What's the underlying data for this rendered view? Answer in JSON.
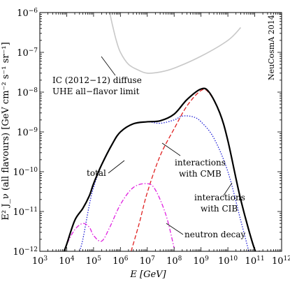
{
  "chart_data": {
    "type": "line",
    "xlabel": "E [GeV]",
    "ylabel": "E² J_ν (all flavours) [GeV cm⁻² s⁻¹ sr⁻¹]",
    "xscale": "log",
    "yscale": "log",
    "xlim": [
      1000,
      1000000000000
    ],
    "ylim": [
      1e-12,
      1e-06
    ],
    "grid": false,
    "x_ticks": [
      {
        "v": 1000.0,
        "base": "10",
        "exp": "3"
      },
      {
        "v": 10000.0,
        "base": "10",
        "exp": "4"
      },
      {
        "v": 100000.0,
        "base": "10",
        "exp": "5"
      },
      {
        "v": 1000000.0,
        "base": "10",
        "exp": "6"
      },
      {
        "v": 10000000.0,
        "base": "10",
        "exp": "7"
      },
      {
        "v": 100000000.0,
        "base": "10",
        "exp": "8"
      },
      {
        "v": 1000000000.0,
        "base": "10",
        "exp": "9"
      },
      {
        "v": 10000000000.0,
        "base": "10",
        "exp": "10"
      },
      {
        "v": 100000000000.0,
        "base": "10",
        "exp": "11"
      },
      {
        "v": 1000000000000.0,
        "base": "10",
        "exp": "12"
      }
    ],
    "y_ticks": [
      {
        "v": 1e-12,
        "base": "10",
        "exp": "−12"
      },
      {
        "v": 1e-11,
        "base": "10",
        "exp": "−11"
      },
      {
        "v": 1e-10,
        "base": "10",
        "exp": "−10"
      },
      {
        "v": 1e-09,
        "base": "10",
        "exp": "−9"
      },
      {
        "v": 1e-08,
        "base": "10",
        "exp": "−8"
      },
      {
        "v": 1e-07,
        "base": "10",
        "exp": "−7"
      },
      {
        "v": 1e-06,
        "base": "10",
        "exp": "−6"
      }
    ],
    "series": [
      {
        "key": "ic_limit",
        "color": "#c8c8c8",
        "dash": "solid",
        "x": [
          400000.0,
          500000.0,
          700000.0,
          1000000.0,
          2000000.0,
          5000000.0,
          10000000.0,
          30000000.0,
          100000000.0,
          1000000000.0,
          10000000000.0,
          30000000000.0
        ],
        "y": [
          1e-06,
          5e-07,
          2e-07,
          1e-07,
          5e-08,
          3.5e-08,
          3e-08,
          3.2e-08,
          4e-08,
          8e-08,
          2e-07,
          4.2e-07
        ]
      },
      {
        "key": "total",
        "name": "total",
        "color": "#000000",
        "dash": "solid",
        "x": [
          8000.0,
          10000.0,
          20000.0,
          40000.0,
          70000.0,
          100000.0,
          200000.0,
          500000.0,
          1000000.0,
          3000000.0,
          10000000.0,
          30000000.0,
          100000000.0,
          300000000.0,
          1000000000.0,
          2000000000.0,
          5000000000.0,
          10000000000.0,
          30000000000.0,
          100000000000.0,
          150000000000.0
        ],
        "y": [
          1e-12,
          1.5e-12,
          6e-12,
          1.2e-11,
          2.5e-11,
          5e-11,
          1.5e-10,
          5e-10,
          1e-09,
          1.6e-09,
          1.8e-09,
          1.9e-09,
          2.8e-09,
          6.5e-09,
          1.2e-08,
          1e-08,
          3e-09,
          6e-10,
          2e-11,
          1.1e-12,
          1e-12
        ]
      },
      {
        "key": "cib",
        "name": "interactions with CIB",
        "color": "#1f1fd6",
        "dash": "dot",
        "x": [
          30000.0,
          40000.0,
          70000.0,
          100000.0,
          200000.0,
          500000.0,
          1000000.0,
          3000000.0,
          10000000.0,
          30000000.0,
          100000000.0,
          200000000.0,
          500000000.0,
          1000000000.0,
          3000000000.0,
          10000000000.0,
          30000000000.0,
          60000000000.0
        ],
        "y": [
          1e-12,
          2e-12,
          1.5e-11,
          4e-11,
          1.5e-10,
          5e-10,
          1e-09,
          1.6e-09,
          1.8e-09,
          1.65e-09,
          2e-09,
          2.5e-09,
          2.4e-09,
          1.8e-09,
          7e-10,
          1e-10,
          6e-12,
          1e-12
        ]
      },
      {
        "key": "cmb",
        "name": "interactions with CMB",
        "color": "#e02020",
        "dash": "dash",
        "x": [
          2500000.0,
          5000000.0,
          10000000.0,
          30000000.0,
          100000000.0,
          300000000.0,
          1000000000.0,
          2000000000.0,
          5000000000.0,
          10000000000.0,
          30000000000.0,
          100000000000.0,
          130000000000.0
        ],
        "y": [
          1e-12,
          5e-12,
          3e-11,
          2.5e-10,
          1.2e-09,
          4.5e-09,
          1.1e-08,
          9.5e-09,
          3e-09,
          6e-10,
          2e-11,
          1.1e-12,
          1e-12
        ]
      },
      {
        "key": "neutron",
        "name": "neutron decay",
        "color": "#e020e0",
        "dash": "dashdot",
        "x": [
          8000.0,
          10000.0,
          20000.0,
          40000.0,
          70000.0,
          100000.0,
          200000.0,
          400000.0,
          1000000.0,
          3000000.0,
          10000000.0,
          20000000.0,
          50000000.0,
          100000000.0
        ],
        "y": [
          1e-12,
          1.5e-12,
          3.5e-12,
          5e-12,
          4e-12,
          2.5e-12,
          1.8e-12,
          4e-12,
          1.5e-11,
          4e-11,
          5e-11,
          3.5e-11,
          8e-12,
          1.2e-12
        ]
      }
    ],
    "annotations": {
      "ic_line1": "IC (2012−12) diffuse",
      "ic_line2": "UHE all−flavor limit",
      "total": "total",
      "cmb_line1": "interactions",
      "cmb_line2": "with CMB",
      "cib_line1": "interactions",
      "cib_line2": "with CIB",
      "neutron": "neutron decay",
      "watermark": "NeuCosmA 2014"
    }
  }
}
